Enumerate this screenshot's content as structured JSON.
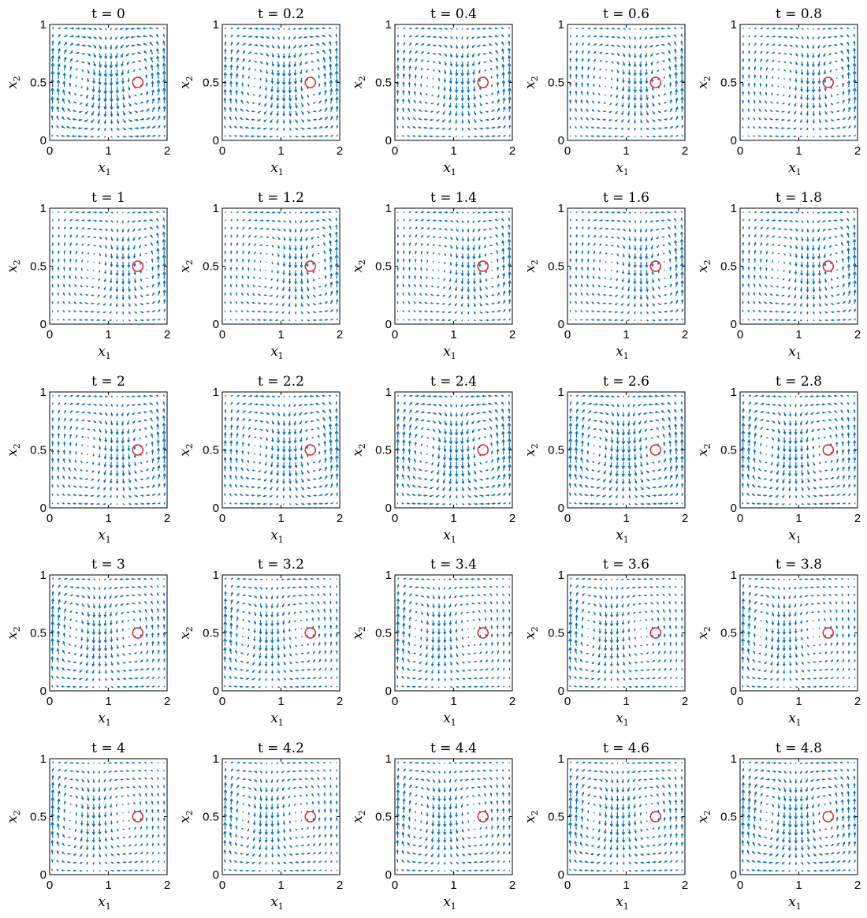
{
  "chart_data": {
    "type": "quiver",
    "layout": {
      "rows": 5,
      "cols": 5
    },
    "xlabel": {
      "base": "x",
      "sub": "1"
    },
    "ylabel": {
      "base": "x",
      "sub": "2"
    },
    "xlim": [
      0,
      2
    ],
    "ylim": [
      0,
      1
    ],
    "xticks": [
      "0",
      "1",
      "2"
    ],
    "yticks": [
      "0",
      "0.5",
      "1"
    ],
    "field": "double-gyre",
    "field_params": {
      "A": 0.1,
      "epsilon": 0.25,
      "omega": 1.2566
    },
    "grid_points": {
      "nx": 20,
      "ny": 14
    },
    "series_color": "#0072bd",
    "marker": {
      "x": 1.5,
      "y": 0.5,
      "color": "#e0202a",
      "shape": "circle"
    },
    "panels": [
      {
        "title": "t = 0",
        "t": 0
      },
      {
        "title": "t = 0.2",
        "t": 0.2
      },
      {
        "title": "t = 0.4",
        "t": 0.4
      },
      {
        "title": "t = 0.6",
        "t": 0.6
      },
      {
        "title": "t = 0.8",
        "t": 0.8
      },
      {
        "title": "t = 1",
        "t": 1
      },
      {
        "title": "t = 1.2",
        "t": 1.2
      },
      {
        "title": "t = 1.4",
        "t": 1.4
      },
      {
        "title": "t = 1.6",
        "t": 1.6
      },
      {
        "title": "t = 1.8",
        "t": 1.8
      },
      {
        "title": "t = 2",
        "t": 2
      },
      {
        "title": "t = 2.2",
        "t": 2.2
      },
      {
        "title": "t = 2.4",
        "t": 2.4
      },
      {
        "title": "t = 2.6",
        "t": 2.6
      },
      {
        "title": "t = 2.8",
        "t": 2.8
      },
      {
        "title": "t = 3",
        "t": 3
      },
      {
        "title": "t = 3.2",
        "t": 3.2
      },
      {
        "title": "t = 3.4",
        "t": 3.4
      },
      {
        "title": "t = 3.6",
        "t": 3.6
      },
      {
        "title": "t = 3.8",
        "t": 3.8
      },
      {
        "title": "t = 4",
        "t": 4
      },
      {
        "title": "t = 4.2",
        "t": 4.2
      },
      {
        "title": "t = 4.4",
        "t": 4.4
      },
      {
        "title": "t = 4.6",
        "t": 4.6
      },
      {
        "title": "t = 4.8",
        "t": 4.8
      }
    ]
  }
}
